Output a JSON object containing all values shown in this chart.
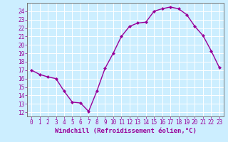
{
  "x": [
    0,
    1,
    2,
    3,
    4,
    5,
    6,
    7,
    8,
    9,
    10,
    11,
    12,
    13,
    14,
    15,
    16,
    17,
    18,
    19,
    20,
    21,
    22,
    23
  ],
  "y": [
    17,
    16.5,
    16.2,
    16,
    14.5,
    13.2,
    13.1,
    12.1,
    14.5,
    17.2,
    19.0,
    21.0,
    22.2,
    22.6,
    22.7,
    24.0,
    24.3,
    24.5,
    24.3,
    23.6,
    22.2,
    21.1,
    19.3,
    17.3
  ],
  "line_color": "#990099",
  "marker": "D",
  "markersize": 2.0,
  "linewidth": 1.0,
  "xlabel": "Windchill (Refroidissement éolien,°C)",
  "ylabel": "",
  "title": "",
  "xlim": [
    -0.5,
    23.5
  ],
  "ylim": [
    11.5,
    25.0
  ],
  "yticks": [
    12,
    13,
    14,
    15,
    16,
    17,
    18,
    19,
    20,
    21,
    22,
    23,
    24
  ],
  "xticks": [
    0,
    1,
    2,
    3,
    4,
    5,
    6,
    7,
    8,
    9,
    10,
    11,
    12,
    13,
    14,
    15,
    16,
    17,
    18,
    19,
    20,
    21,
    22,
    23
  ],
  "bg_color": "#cceeff",
  "grid_color": "#ffffff",
  "tick_label_fontsize": 5.5,
  "xlabel_fontsize": 6.5,
  "xlabel_color": "#990099",
  "axis_color": "#990099",
  "spine_color": "#777777"
}
